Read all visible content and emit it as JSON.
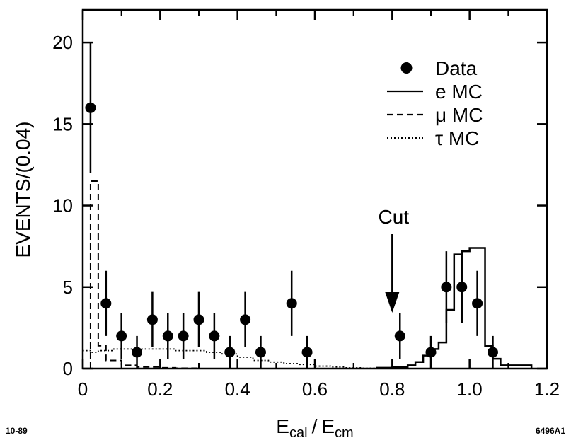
{
  "chart_data": {
    "type": "scatter",
    "xlabel_main": "E",
    "xlabel_sub1": "cal",
    "xlabel_sep": "/",
    "xlabel_main2": "E",
    "xlabel_sub2": "cm",
    "ylabel": "EVENTS/(0.04)",
    "xlim": [
      0,
      1.2
    ],
    "ylim": [
      0,
      22
    ],
    "x_ticks": [
      "0",
      "0.2",
      "0.4",
      "0.6",
      "0.8",
      "1.0",
      "1.2"
    ],
    "y_ticks": [
      "0",
      "5",
      "10",
      "15",
      "20"
    ],
    "legend": {
      "placement": "top-right",
      "entries": [
        {
          "label": "Data",
          "style": "dot"
        },
        {
          "label": "e MC",
          "style": "solid"
        },
        {
          "label": "μ MC",
          "style": "dashed"
        },
        {
          "label": "τ MC",
          "style": "dotted"
        }
      ]
    },
    "data_points": [
      {
        "x": 0.02,
        "y": 16,
        "err": 4
      },
      {
        "x": 0.06,
        "y": 4,
        "err": 2
      },
      {
        "x": 0.1,
        "y": 2,
        "err": 1.4
      },
      {
        "x": 0.14,
        "y": 1,
        "err": 1
      },
      {
        "x": 0.18,
        "y": 3,
        "err": 1.7
      },
      {
        "x": 0.22,
        "y": 2,
        "err": 1.4
      },
      {
        "x": 0.26,
        "y": 2,
        "err": 1.4
      },
      {
        "x": 0.3,
        "y": 3,
        "err": 1.7
      },
      {
        "x": 0.34,
        "y": 2,
        "err": 1.4
      },
      {
        "x": 0.38,
        "y": 1,
        "err": 1
      },
      {
        "x": 0.42,
        "y": 3,
        "err": 1.7
      },
      {
        "x": 0.46,
        "y": 1,
        "err": 1
      },
      {
        "x": 0.54,
        "y": 4,
        "err": 2
      },
      {
        "x": 0.58,
        "y": 1,
        "err": 1
      },
      {
        "x": 0.82,
        "y": 2,
        "err": 1.4
      },
      {
        "x": 0.9,
        "y": 1,
        "err": 1
      },
      {
        "x": 0.94,
        "y": 5,
        "err": 2.2
      },
      {
        "x": 0.98,
        "y": 5,
        "err": 2.2
      },
      {
        "x": 1.02,
        "y": 4,
        "err": 2
      },
      {
        "x": 1.06,
        "y": 1,
        "err": 1
      }
    ],
    "e_mc": {
      "edges": [
        0.76,
        0.8,
        0.84,
        0.86,
        0.88,
        0.9,
        0.92,
        0.94,
        0.96,
        0.98,
        1.0,
        1.04,
        1.06,
        1.08,
        1.16
      ],
      "values": [
        0.05,
        0.1,
        0.2,
        0.4,
        0.8,
        1.2,
        1.6,
        3.6,
        7.0,
        7.2,
        7.4,
        1.4,
        0.6,
        0.2
      ]
    },
    "mu_mc": {
      "edges": [
        0.02,
        0.04,
        0.06,
        0.1,
        0.14,
        0.2,
        0.24,
        0.3
      ],
      "values": [
        11.5,
        1.4,
        0.5,
        0.2,
        0.1,
        0.05,
        0.02
      ]
    },
    "tau_mc": {
      "edges": [
        0.0,
        0.02,
        0.04,
        0.08,
        0.12,
        0.16,
        0.2,
        0.24,
        0.28,
        0.32,
        0.36,
        0.4,
        0.44,
        0.48,
        0.52,
        0.56,
        0.6,
        0.64,
        0.68,
        0.72,
        0.78
      ],
      "values": [
        1.1,
        1.0,
        1.1,
        1.2,
        1.2,
        1.2,
        1.2,
        1.1,
        1.1,
        1.0,
        0.9,
        0.7,
        0.5,
        0.4,
        0.3,
        0.25,
        0.15,
        0.1,
        0.05,
        0.02
      ]
    },
    "annotation": {
      "label": "Cut",
      "x": 0.8
    }
  },
  "footer": {
    "left_code": "10-89",
    "right_code": "6496A1"
  }
}
